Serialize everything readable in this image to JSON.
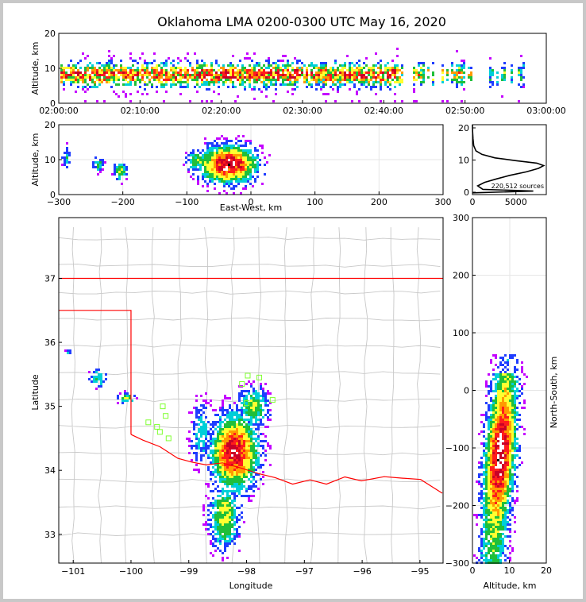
{
  "title": "Oklahoma LMA 0200-0300 UTC May 16, 2020",
  "source_count_label": "220,512 sources",
  "colors": {
    "density": [
      "#c400ff",
      "#1f3dff",
      "#00cfd8",
      "#1fbf3a",
      "#ffff30",
      "#ff9a00",
      "#ff1c1c",
      "#c80028",
      "#ffffff",
      "#000000"
    ],
    "state_border": "#ff0000",
    "county_lines": "#c8c8c8",
    "network_stations": "#7fff30"
  },
  "chart_data": [
    {
      "id": "time_height",
      "type": "heatmap",
      "xlabel": "",
      "ylabel": "Altitude, km",
      "xlim": [
        "02:00:00",
        "03:00:00"
      ],
      "ylim": [
        0,
        20
      ],
      "xticks": [
        "02:00:00",
        "02:10:00",
        "02:20:00",
        "02:30:00",
        "02:40:00",
        "02:50:00",
        "03:00:00"
      ],
      "yticks": [
        "0",
        "10",
        "20"
      ]
    },
    {
      "id": "ew_height",
      "type": "heatmap",
      "xlabel": "East-West, km",
      "ylabel": "Altitude, km",
      "xlim": [
        -300,
        300
      ],
      "ylim": [
        0,
        20
      ],
      "xticks": [
        "−300",
        "−200",
        "−100",
        "0",
        "100",
        "200",
        "300"
      ],
      "yticks": [
        "0",
        "10",
        "20"
      ]
    },
    {
      "id": "altitude_histogram",
      "type": "line",
      "xlim": [
        0,
        8500
      ],
      "ylim": [
        0,
        20
      ],
      "xticks": [
        "0",
        "5000"
      ],
      "yticks": [
        "0",
        "10",
        "20"
      ],
      "points": [
        [
          0,
          0.5
        ],
        [
          7000,
          1.0
        ],
        [
          1200,
          1.5
        ],
        [
          600,
          2.5
        ],
        [
          1400,
          3.5
        ],
        [
          2800,
          4.5
        ],
        [
          4300,
          5.5
        ],
        [
          6200,
          6.5
        ],
        [
          7600,
          7.5
        ],
        [
          8200,
          8.3
        ],
        [
          7400,
          9.0
        ],
        [
          5000,
          9.7
        ],
        [
          2600,
          10.5
        ],
        [
          1100,
          11.5
        ],
        [
          400,
          12.5
        ],
        [
          150,
          14
        ],
        [
          60,
          16
        ],
        [
          20,
          18
        ],
        [
          0,
          20
        ]
      ]
    },
    {
      "id": "plan_view",
      "type": "heatmap",
      "xlabel": "Longitude",
      "ylabel": "Latitude",
      "xlim": [
        -101.25,
        -94.6
      ],
      "ylim": [
        32.55,
        37.95
      ],
      "xticks": [
        "−101",
        "−100",
        "−99",
        "−98",
        "−97",
        "−96",
        "−95"
      ],
      "yticks": [
        "33",
        "34",
        "35",
        "36",
        "37"
      ]
    },
    {
      "id": "ns_height",
      "type": "heatmap",
      "xlabel": "Altitude, km",
      "ylabel": "North-South, km",
      "xlim": [
        0,
        20
      ],
      "ylim": [
        -300,
        300
      ],
      "xticks": [
        "0",
        "10",
        "20"
      ],
      "yticks": [
        "−300",
        "−200",
        "−100",
        "0",
        "100",
        "200",
        "300"
      ]
    }
  ]
}
